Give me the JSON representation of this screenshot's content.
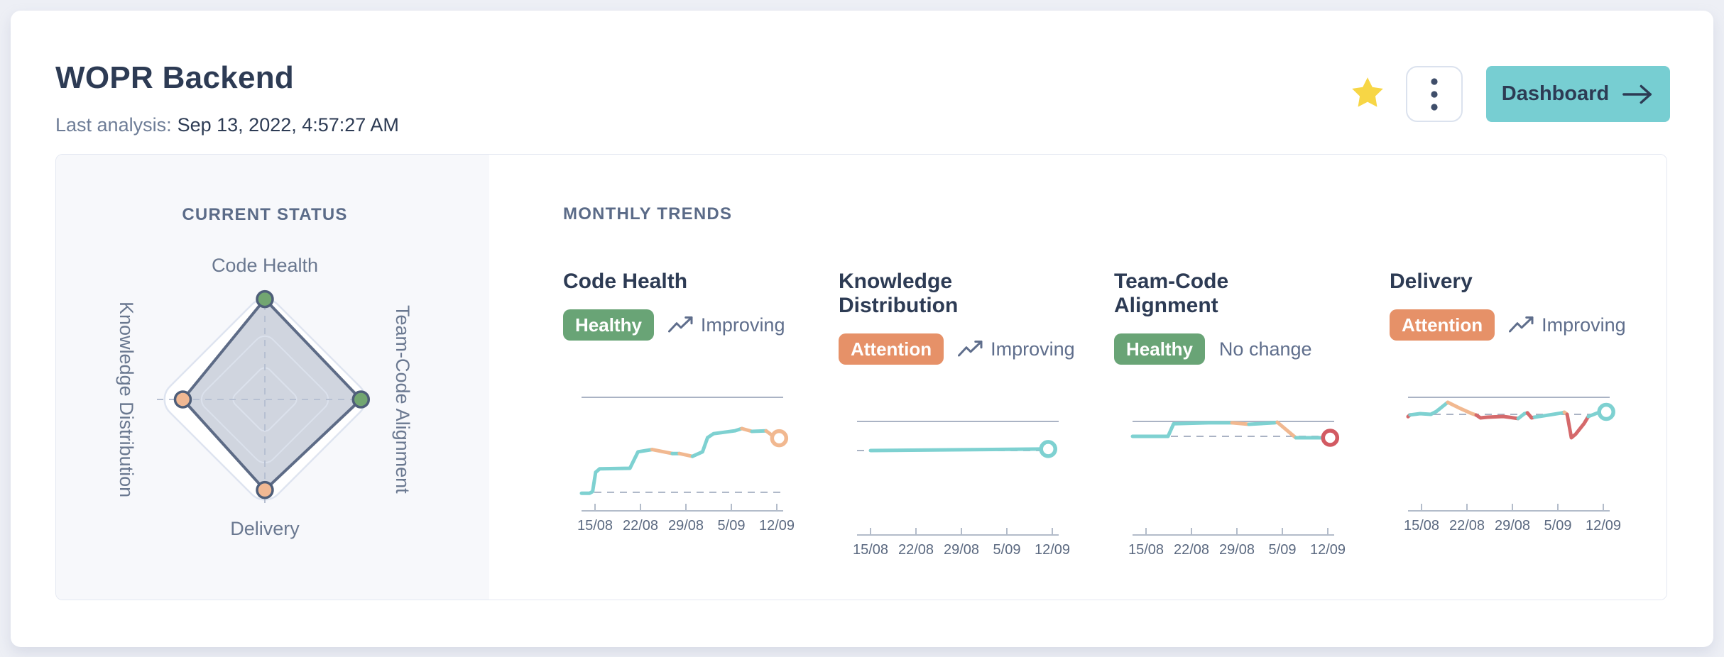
{
  "header": {
    "title": "WOPR Backend",
    "last_analysis_label": "Last analysis:",
    "last_analysis_value": "Sep 13, 2022, 4:57:27 AM",
    "dashboard_button_label": "Dashboard",
    "icons": {
      "favorite": "star-icon",
      "menu": "kebab-menu-icon",
      "dashboard_arrow": "arrow-right-icon",
      "trend": "trending-up-icon"
    }
  },
  "current_status": {
    "heading": "CURRENT STATUS"
  },
  "monthly_trends": {
    "heading": "MONTHLY TRENDS",
    "cards": [
      {
        "title": "Code Health",
        "badge_label": "Healthy",
        "badge_color": "green",
        "trend_label": "Improving",
        "has_trend_icon": true
      },
      {
        "title": "Knowledge Distribution",
        "badge_label": "Attention",
        "badge_color": "orange",
        "trend_label": "Improving",
        "has_trend_icon": true
      },
      {
        "title": "Team-Code Alignment",
        "badge_label": "Healthy",
        "badge_color": "green",
        "trend_label": "No change",
        "has_trend_icon": false
      },
      {
        "title": "Delivery",
        "badge_label": "Attention",
        "badge_color": "orange",
        "trend_label": "Improving",
        "has_trend_icon": true
      }
    ]
  },
  "chart_data": [
    {
      "type": "radar",
      "title": "CURRENT STATUS",
      "max_value": 100,
      "rings_pct": [
        32,
        63,
        100
      ],
      "axes": [
        {
          "label": "Code Health",
          "position": "top",
          "value_pct": 93,
          "status": "healthy"
        },
        {
          "label": "Team-Code Alignment",
          "position": "right",
          "value_pct": 89,
          "status": "healthy"
        },
        {
          "label": "Delivery",
          "position": "bottom",
          "value_pct": 84,
          "status": "attention"
        },
        {
          "label": "Knowledge Distribution",
          "position": "left",
          "value_pct": 76,
          "status": "attention"
        }
      ]
    },
    {
      "type": "line",
      "title": "Code Health",
      "x_labels": [
        "15/08",
        "22/08",
        "29/08",
        "5/09",
        "12/09"
      ],
      "y_scale_note": "y in 0-1 of chart height; top solid guide = 1.0",
      "top_line": 1.0,
      "baseline_dashed": 0.163,
      "segments": [
        {
          "color": "teal",
          "points": [
            [
              0,
              0.155
            ],
            [
              4,
              0.155
            ],
            [
              5.5,
              0.17
            ],
            [
              7,
              0.34
            ],
            [
              9,
              0.37
            ],
            [
              24,
              0.375
            ],
            [
              28,
              0.52
            ],
            [
              35,
              0.54
            ]
          ]
        },
        {
          "color": "orange",
          "points": [
            [
              35,
              0.54
            ],
            [
              45,
              0.505
            ]
          ]
        },
        {
          "color": "teal",
          "points": [
            [
              45,
              0.505
            ],
            [
              48.5,
              0.505
            ]
          ]
        },
        {
          "color": "orange",
          "points": [
            [
              48.5,
              0.505
            ],
            [
              55,
              0.48
            ]
          ]
        },
        {
          "color": "teal",
          "points": [
            [
              55,
              0.48
            ],
            [
              60,
              0.52
            ],
            [
              62.5,
              0.645
            ],
            [
              65.5,
              0.68
            ],
            [
              76,
              0.705
            ],
            [
              79.5,
              0.725
            ]
          ]
        },
        {
          "color": "orange",
          "points": [
            [
              79.5,
              0.725
            ],
            [
              84.5,
              0.7
            ]
          ]
        },
        {
          "color": "teal",
          "points": [
            [
              84.5,
              0.7
            ],
            [
              91.5,
              0.705
            ]
          ]
        },
        {
          "color": "orange",
          "points": [
            [
              91.5,
              0.705
            ],
            [
              95.3,
              0.655
            ]
          ]
        }
      ],
      "end_marker": {
        "x": 98,
        "y": 0.64,
        "color": "orange"
      }
    },
    {
      "type": "line",
      "title": "Knowledge Distribution",
      "x_labels": [
        "15/08",
        "22/08",
        "29/08",
        "5/09",
        "12/09"
      ],
      "y_scale_note": "y in 0-1 of chart height; top solid guide = 1.0",
      "top_line": 1.0,
      "baseline_dashed": 0.744,
      "segments": [
        {
          "color": "teal",
          "points": [
            [
              6.7,
              0.744
            ],
            [
              90.5,
              0.757
            ]
          ]
        }
      ],
      "end_marker": {
        "x": 94.8,
        "y": 0.757,
        "color": "teal"
      }
    },
    {
      "type": "line",
      "title": "Team-Code Alignment",
      "x_labels": [
        "15/08",
        "22/08",
        "29/08",
        "5/09",
        "12/09"
      ],
      "y_scale_note": "y in 0-1 of chart height; top solid guide = 1.0",
      "top_line": 1.0,
      "baseline_dashed": 0.869,
      "segments": [
        {
          "color": "teal",
          "points": [
            [
              0,
              0.869
            ],
            [
              17.6,
              0.869
            ],
            [
              20.4,
              0.98
            ],
            [
              37.7,
              0.988
            ],
            [
              49.3,
              0.988
            ]
          ]
        },
        {
          "color": "orange",
          "points": [
            [
              49.3,
              0.988
            ],
            [
              57.7,
              0.975
            ]
          ]
        },
        {
          "color": "teal",
          "points": [
            [
              57.7,
              0.975
            ],
            [
              70.4,
              0.988
            ],
            [
              71.8,
              0.993
            ]
          ]
        },
        {
          "color": "orange",
          "points": [
            [
              71.8,
              0.993
            ],
            [
              74,
              0.96
            ],
            [
              81,
              0.856
            ]
          ]
        },
        {
          "color": "teal",
          "points": [
            [
              81,
              0.856
            ],
            [
              95,
              0.856
            ]
          ]
        }
      ],
      "end_marker": {
        "x": 98,
        "y": 0.856,
        "color": "red"
      }
    },
    {
      "type": "line",
      "title": "Delivery",
      "x_labels": [
        "15/08",
        "22/08",
        "29/08",
        "5/09",
        "12/09"
      ],
      "y_scale_note": "y in 0-1 of chart height; top solid guide = 1.0",
      "top_line": 1.0,
      "baseline_dashed": 0.85,
      "segments": [
        {
          "color": "red",
          "points": [
            [
              0,
              0.83
            ],
            [
              1,
              0.845
            ]
          ]
        },
        {
          "color": "teal",
          "points": [
            [
              1,
              0.845
            ],
            [
              6,
              0.856
            ],
            [
              11.3,
              0.85
            ],
            [
              14,
              0.875
            ],
            [
              19.7,
              0.956
            ]
          ]
        },
        {
          "color": "orange",
          "points": [
            [
              19.7,
              0.956
            ],
            [
              25.4,
              0.906
            ],
            [
              31.7,
              0.856
            ],
            [
              33.8,
              0.844
            ]
          ]
        },
        {
          "color": "red",
          "points": [
            [
              33.8,
              0.844
            ],
            [
              35.9,
              0.819
            ],
            [
              39.4,
              0.825
            ],
            [
              47.2,
              0.831
            ],
            [
              50,
              0.825
            ],
            [
              54.6,
              0.813
            ]
          ]
        },
        {
          "color": "teal",
          "points": [
            [
              54.6,
              0.813
            ],
            [
              57.7,
              0.856
            ],
            [
              59.2,
              0.863
            ]
          ]
        },
        {
          "color": "red",
          "points": [
            [
              59.2,
              0.863
            ],
            [
              61.3,
              0.819
            ],
            [
              62.7,
              0.825
            ]
          ]
        },
        {
          "color": "teal",
          "points": [
            [
              62.7,
              0.825
            ],
            [
              67.6,
              0.838
            ],
            [
              76.4,
              0.863
            ],
            [
              77.5,
              0.869
            ]
          ]
        },
        {
          "color": "orange",
          "points": [
            [
              77.5,
              0.869
            ],
            [
              78.9,
              0.85
            ]
          ]
        },
        {
          "color": "red",
          "points": [
            [
              78.9,
              0.85
            ],
            [
              81,
              0.644
            ],
            [
              83.1,
              0.675
            ],
            [
              87.3,
              0.769
            ],
            [
              89.4,
              0.831
            ]
          ]
        },
        {
          "color": "teal",
          "points": [
            [
              89.4,
              0.831
            ],
            [
              94,
              0.863
            ],
            [
              95.8,
              0.869
            ]
          ]
        }
      ],
      "end_marker": {
        "x": 98.3,
        "y": 0.872,
        "color": "teal"
      }
    }
  ],
  "colors": {
    "page_bg": "#edeff5",
    "card_bg": "#ffffff",
    "panel_bg": "#f7f8fb",
    "panel_border": "#e4e8f2",
    "text_dark": "#2d3b54",
    "text_slate": "#5f6e8c",
    "heading_slate": "#5b6b88",
    "label_gray": "#6a7890",
    "tick_label": "#5b6980",
    "star_gold": "#f7d645",
    "accent_teal": "#77ced2",
    "badge_green": "#69a476",
    "badge_orange": "#e69168",
    "line_teal": "#7ed1d1",
    "line_orange": "#f1b890",
    "line_red": "#d5696b",
    "marker_red": "#d25a62",
    "axis_gray": "#b3bcca",
    "guide_gray": "#aab3c4",
    "radar_fill": "#c9cfdb",
    "radar_stroke": "#5d6b86",
    "radar_ring": "#dbe1ec",
    "radar_outer_ring": "#dee4f0",
    "radar_dash": "#b7c0d2",
    "dot_green": "#72a671",
    "dot_peach": "#f0b893",
    "dot_stroke": "#4e5e79"
  }
}
